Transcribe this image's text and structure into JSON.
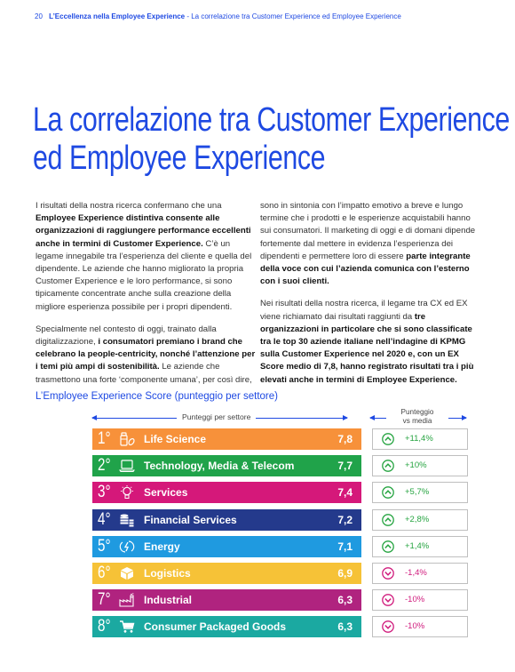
{
  "header": {
    "page_number": "20",
    "section": "L’Eccellenza nella Employee Experience",
    "separator": " - ",
    "subtitle": "La correlazione tra Customer Experience ed Employee Experience"
  },
  "title": {
    "line1": "La correlazione tra Customer Experience",
    "line2": "ed Employee Experience"
  },
  "body": {
    "c1p1_a": "I risultati della nostra ricerca confermano che una ",
    "c1p1_b": "Employee Experience distintiva consente alle organizzazioni di raggiungere performance eccellenti anche in termini di Customer Experience.",
    "c1p1_c": " C’è un legame innegabile tra l’esperienza del cliente e quella del dipendente. Le aziende che hanno migliorato la propria Customer Experience e le loro performance, si sono tipicamente concentrate anche sulla creazione della migliore esperienza possibile per i propri dipendenti.",
    "c1p2_a": "Specialmente nel contesto di oggi, trainato dalla digitalizzazione, ",
    "c1p2_b": "i consumatori premiano i brand che celebrano la people-centricity, nonché l’attenzione per i temi più ampi di sostenibilità.",
    "c1p2_c": " Le aziende che trasmettono una forte ‘componente umana’, per così dire,",
    "c2p1_a": "sono in sintonia con l’impatto emotivo a breve e lungo termine che i prodotti e le esperienze acquistabili hanno sui consumatori. Il marketing di oggi e di domani dipende fortemente dal mettere in evidenza l’esperienza dei dipendenti e permettere loro di essere ",
    "c2p1_b": "parte integrante della voce con cui l’azienda comunica con l’esterno con i suoi clienti.",
    "c2p2_a": "Nei risultati della nostra ricerca, il legame tra CX ed EX viene richiamato dai risultati raggiunti da ",
    "c2p2_b": "tre organizzazioni in particolare che si sono classificate tra le top 30 aziende italiane nell’indagine di KPMG sulla Customer Experience nel 2020 e, con un EX Score medio di 7,8, hanno registrato risultati tra i più elevati anche in termini di Employee Experience."
  },
  "chart": {
    "title": "L’Employee Experience Score (punteggio per settore)",
    "left_header": "Punteggi per settore",
    "right_header_1": "Punteggio",
    "right_header_2": "vs media"
  },
  "chart_data": {
    "type": "table",
    "title": "L’Employee Experience Score (punteggio per settore)",
    "columns": [
      "Punteggi per settore",
      "Punteggio vs media"
    ],
    "rows": [
      {
        "rank": "1°",
        "icon": "pills-icon",
        "sector": "Life Science",
        "score": "7,8",
        "score_value": 7.8,
        "delta": "+11,4%",
        "trend": "up",
        "color": "#f7913a"
      },
      {
        "rank": "2°",
        "icon": "laptop-icon",
        "sector": "Technology, Media & Telecom",
        "score": "7,7",
        "score_value": 7.7,
        "delta": "+10%",
        "trend": "up",
        "color": "#20a34a"
      },
      {
        "rank": "3°",
        "icon": "lightbulb-icon",
        "sector": "Services",
        "score": "7,4",
        "score_value": 7.4,
        "delta": "+5,7%",
        "trend": "up",
        "color": "#d5187a"
      },
      {
        "rank": "4°",
        "icon": "coins-icon",
        "sector": "Financial Services",
        "score": "7,2",
        "score_value": 7.2,
        "delta": "+2,8%",
        "trend": "up",
        "color": "#243a8c"
      },
      {
        "rank": "5°",
        "icon": "energy-icon",
        "sector": "Energy",
        "score": "7,1",
        "score_value": 7.1,
        "delta": "+1,4%",
        "trend": "up",
        "color": "#1f9ae0"
      },
      {
        "rank": "6°",
        "icon": "box-icon",
        "sector": "Logistics",
        "score": "6,9",
        "score_value": 6.9,
        "delta": "-1,4%",
        "trend": "down",
        "color": "#f6c237"
      },
      {
        "rank": "7°",
        "icon": "factory-icon",
        "sector": "Industrial",
        "score": "6,3",
        "score_value": 6.3,
        "delta": "-10%",
        "trend": "down",
        "color": "#b0237f"
      },
      {
        "rank": "8°",
        "icon": "cart-icon",
        "sector": "Consumer Packaged Goods",
        "score": "6,3",
        "score_value": 6.3,
        "delta": "-10%",
        "trend": "down",
        "color": "#1ba9a1"
      }
    ]
  },
  "colors": {
    "accent": "#1e49e2",
    "up": "#26a441",
    "down": "#d01c7d"
  }
}
